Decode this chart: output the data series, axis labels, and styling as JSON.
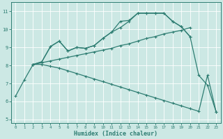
{
  "lines": [
    {
      "x": [
        0,
        1,
        2,
        3,
        4,
        5,
        6,
        7,
        8,
        9,
        10,
        11,
        12,
        13,
        14,
        15,
        16,
        17,
        18,
        19,
        20,
        21,
        22,
        23
      ],
      "y": [
        6.3,
        7.2,
        8.05,
        8.2,
        9.05,
        9.35,
        8.8,
        9.0,
        8.95,
        9.1,
        9.5,
        9.85,
        10.45,
        10.5,
        10.9,
        10.9,
        10.9,
        10.9,
        10.45,
        10.15,
        9.6,
        7.45,
        6.9,
        5.4
      ]
    },
    {
      "x": [
        2,
        3,
        4,
        5,
        6,
        7,
        8,
        9,
        10,
        11,
        12,
        13,
        14,
        15,
        16,
        17,
        18,
        19,
        20
      ],
      "y": [
        8.05,
        8.2,
        9.05,
        9.35,
        8.8,
        9.0,
        8.95,
        9.1,
        9.5,
        9.85,
        10.1,
        10.45,
        10.9,
        10.9,
        10.9,
        10.9,
        10.45,
        10.15,
        9.6
      ]
    },
    {
      "x": [
        2,
        3,
        4,
        5,
        6,
        7,
        8,
        9,
        10,
        11,
        12,
        13,
        14,
        15,
        16,
        17,
        18,
        19,
        20
      ],
      "y": [
        8.05,
        8.15,
        8.25,
        8.35,
        8.45,
        8.55,
        8.65,
        8.75,
        8.85,
        8.95,
        9.1,
        9.2,
        9.35,
        9.5,
        9.6,
        9.75,
        9.85,
        9.95,
        10.1
      ]
    },
    {
      "x": [
        2,
        3,
        4,
        5,
        6,
        7,
        8,
        9,
        10,
        11,
        12,
        13,
        14,
        15,
        16,
        17,
        18,
        19,
        20,
        21,
        22,
        23
      ],
      "y": [
        8.05,
        8.05,
        7.95,
        7.85,
        7.7,
        7.55,
        7.4,
        7.25,
        7.1,
        6.95,
        6.8,
        6.65,
        6.5,
        6.35,
        6.2,
        6.05,
        5.9,
        5.75,
        5.6,
        5.45,
        7.45,
        5.4
      ]
    }
  ],
  "color": "#2e7d72",
  "bg_color": "#cce8e4",
  "grid_color": "#ffffff",
  "xlabel": "Humidex (Indice chaleur)",
  "xlim": [
    -0.5,
    23.5
  ],
  "ylim": [
    4.8,
    11.5
  ],
  "yticks": [
    5,
    6,
    7,
    8,
    9,
    10,
    11
  ],
  "xticks": [
    0,
    1,
    2,
    3,
    4,
    5,
    6,
    7,
    8,
    9,
    10,
    11,
    12,
    13,
    14,
    15,
    16,
    17,
    18,
    19,
    20,
    21,
    22,
    23
  ],
  "marker": "+",
  "linewidth": 0.9,
  "markersize": 3.5
}
